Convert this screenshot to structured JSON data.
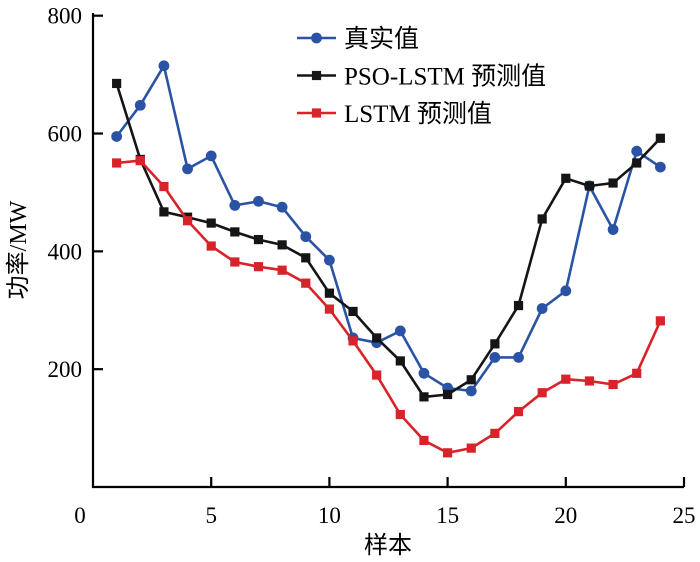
{
  "chart_data": {
    "type": "line",
    "title": "",
    "xlabel": "样本",
    "ylabel": "功率/MW",
    "xlim": [
      0,
      25
    ],
    "ylim": [
      0,
      800
    ],
    "x_ticks": [
      0,
      5,
      10,
      15,
      20,
      25
    ],
    "y_ticks": [
      200,
      400,
      600,
      800
    ],
    "grid": false,
    "legend_position": "top-center-inside",
    "x": [
      1,
      2,
      3,
      4,
      5,
      6,
      7,
      8,
      9,
      10,
      11,
      12,
      13,
      14,
      15,
      16,
      17,
      18,
      19,
      20,
      21,
      22,
      23,
      24
    ],
    "series": [
      {
        "name": "真实值",
        "slug": "actual-values",
        "color": "#2b53a5",
        "marker": "circle",
        "values": [
          595,
          648,
          715,
          540,
          562,
          478,
          485,
          475,
          425,
          385,
          253,
          245,
          265,
          193,
          168,
          163,
          220,
          220,
          303,
          333,
          511,
          437,
          570,
          543
        ]
      },
      {
        "name": "PSO-LSTM 预测值",
        "slug": "pso-lstm-prediction",
        "color": "#151515",
        "marker": "square",
        "values": [
          685,
          556,
          467,
          458,
          448,
          433,
          420,
          411,
          389,
          329,
          298,
          253,
          214,
          153,
          157,
          182,
          243,
          308,
          455,
          524,
          511,
          516,
          550,
          592
        ]
      },
      {
        "name": "LSTM 预测值",
        "slug": "lstm-prediction",
        "color": "#d9232a",
        "marker": "square",
        "values": [
          550,
          554,
          510,
          452,
          409,
          382,
          374,
          368,
          346,
          302,
          248,
          190,
          123,
          79,
          58,
          66,
          91,
          128,
          160,
          183,
          180,
          174,
          193,
          282
        ]
      }
    ],
    "axis_color": "#000000"
  }
}
